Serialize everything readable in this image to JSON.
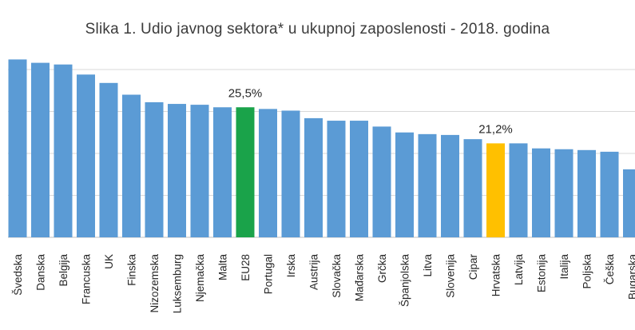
{
  "chart_data": {
    "type": "bar",
    "title": "Slika 1. Udio javnog sektora* u ukupnoj zaposlenosti - 2018. godina",
    "categories": [
      "Švedska",
      "Danska",
      "Belgija",
      "Francuska",
      "UK",
      "Finska",
      "Nizozemska",
      "Luksemburg",
      "Njemačka",
      "Malta",
      "EU28",
      "Portugal",
      "Irska",
      "Austrija",
      "Slovačka",
      "Mađarska",
      "Grčka",
      "Španjolska",
      "Litva",
      "Slovenija",
      "Cipar",
      "Hrvatska",
      "Latvija",
      "Estonija",
      "Italija",
      "Poljska",
      "Češka",
      "Bugarska"
    ],
    "values": [
      31.2,
      30.8,
      30.6,
      29.4,
      28.4,
      27.0,
      26.1,
      25.9,
      25.8,
      25.5,
      25.5,
      25.3,
      25.1,
      24.2,
      23.9,
      23.9,
      23.2,
      22.5,
      22.3,
      22.2,
      21.7,
      21.2,
      21.2,
      20.6,
      20.5,
      20.4,
      20.2,
      18.1
    ],
    "ylim": [
      10,
      32
    ],
    "grid": true,
    "bar_color": "#5b9bd5",
    "highlights": [
      {
        "category": "EU28",
        "color": "#1aa34a",
        "label": "25,5%"
      },
      {
        "category": "Hrvatska",
        "color": "#ffc000",
        "label": "21,2%"
      }
    ]
  }
}
